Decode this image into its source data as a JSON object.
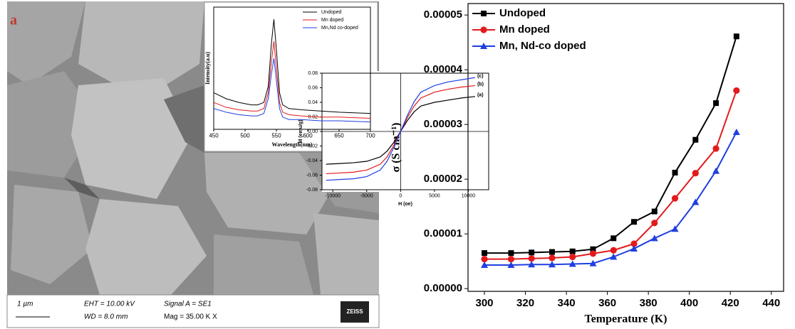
{
  "sem_image": {
    "panel_label": "a",
    "scale_bar": "1 µm",
    "eht": "EHT = 10.00 kV",
    "wd": "WD = 8.0 mm",
    "signal": "Signal A = SE1",
    "mag": "Mag = 35.00 K X",
    "brand": "ZEISS"
  },
  "chart_data": [
    {
      "type": "line",
      "x_label": "Temperature (K)",
      "y_label": "σ (S cm⁻¹)",
      "x": [
        300,
        313,
        323,
        333,
        343,
        353,
        363,
        373,
        383,
        393,
        403,
        413,
        423
      ],
      "series": [
        {
          "name": "Undoped",
          "color": "#000000",
          "marker": "square",
          "values": [
            6.5e-06,
            6.5e-06,
            6.6e-06,
            6.7e-06,
            6.8e-06,
            7.2e-06,
            9.2e-06,
            1.22e-05,
            1.41e-05,
            2.12e-05,
            2.72e-05,
            3.39e-05,
            4.61e-05
          ]
        },
        {
          "name": "Mn doped",
          "color": "#e31a1c",
          "marker": "circle",
          "values": [
            5.4e-06,
            5.4e-06,
            5.5e-06,
            5.6e-06,
            5.8e-06,
            6.4e-06,
            7e-06,
            8.2e-06,
            1.2e-05,
            1.65e-05,
            2.11e-05,
            2.56e-05,
            3.62e-05
          ]
        },
        {
          "name": "Mn, Nd-co doped",
          "color": "#1f3fe0",
          "marker": "triangle",
          "values": [
            4.3e-06,
            4.3e-06,
            4.4e-06,
            4.4e-06,
            4.5e-06,
            4.6e-06,
            5.8e-06,
            7.3e-06,
            9.2e-06,
            1.09e-05,
            1.58e-05,
            2.15e-05,
            2.86e-05
          ]
        }
      ],
      "xlim": [
        292,
        446
      ],
      "ylim": [
        -5e-07,
        5.21e-05
      ],
      "xticks": [
        300,
        320,
        340,
        360,
        380,
        400,
        420,
        440
      ],
      "yticks": [
        {
          "value": 0,
          "label": "0.00000"
        },
        {
          "value": 1e-05,
          "label": "0.00001"
        },
        {
          "value": 2e-05,
          "label": "0.00002"
        },
        {
          "value": 3e-05,
          "label": "0.00003"
        },
        {
          "value": 4e-05,
          "label": "0.00004"
        },
        {
          "value": 5e-05,
          "label": "0.00005"
        }
      ],
      "legend": "upper left"
    },
    {
      "type": "line",
      "x_label": "H (oe)",
      "y_label": "M (emu/g)",
      "zero_axes": true,
      "x": [
        -11000,
        -9000,
        -7000,
        -5000,
        -3000,
        -2000,
        -1000,
        0,
        1000,
        2000,
        3000,
        5000,
        7000,
        9000,
        11000
      ],
      "series": [
        {
          "label": "(a)",
          "color": "#000000",
          "values": [
            -0.045,
            -0.044,
            -0.043,
            -0.041,
            -0.035,
            -0.027,
            -0.015,
            0,
            0.015,
            0.027,
            0.035,
            0.04,
            0.043,
            0.046,
            0.048
          ]
        },
        {
          "label": "(b)",
          "color": "#e31a1c",
          "values": [
            -0.058,
            -0.057,
            -0.056,
            -0.053,
            -0.045,
            -0.035,
            -0.019,
            0,
            0.019,
            0.035,
            0.046,
            0.054,
            0.058,
            0.061,
            0.063
          ]
        },
        {
          "label": "(c)",
          "color": "#1f3fe0",
          "values": [
            -0.067,
            -0.066,
            -0.065,
            -0.062,
            -0.053,
            -0.041,
            -0.022,
            0,
            0.022,
            0.041,
            0.054,
            0.063,
            0.068,
            0.071,
            0.074
          ]
        }
      ],
      "xlim": [
        -11600,
        13000
      ],
      "ylim": [
        -0.08,
        0.08
      ],
      "xticks": [
        -10000,
        -5000,
        0,
        5000,
        10000
      ],
      "yticks": [
        0.08,
        0.06,
        0.04,
        0.02,
        {
          "value": 0,
          "label": "0.00"
        },
        -0.02,
        -0.04,
        -0.06,
        -0.08
      ]
    },
    {
      "type": "line",
      "x_label": "Wavelength(nm)",
      "y_label": "Intensity(a.u)",
      "x": [
        450,
        470,
        490,
        510,
        520,
        530,
        537,
        542,
        546,
        550,
        555,
        560,
        570,
        590,
        620,
        650,
        700
      ],
      "series": [
        {
          "name": "Undoped",
          "color": "#000000",
          "values": [
            30,
            25,
            22,
            20,
            20,
            22,
            35,
            70,
            90,
            65,
            30,
            20,
            17,
            16,
            15,
            14,
            13
          ]
        },
        {
          "name": "Mn doped",
          "color": "#e31a1c",
          "values": [
            22,
            18,
            16,
            15,
            15,
            17,
            30,
            55,
            72,
            50,
            22,
            14,
            12,
            11,
            10,
            10,
            9
          ]
        },
        {
          "name": "Mn,Nd co-doped",
          "color": "#1f3fe0",
          "values": [
            17,
            14,
            12,
            11,
            11,
            13,
            25,
            45,
            58,
            40,
            17,
            10,
            8,
            8,
            7,
            7,
            6
          ]
        }
      ],
      "xlim": [
        450,
        700
      ],
      "ylim": [
        0,
        100
      ],
      "xticks": [
        450,
        500,
        550,
        600,
        650,
        700
      ],
      "legend": "upper right"
    }
  ]
}
